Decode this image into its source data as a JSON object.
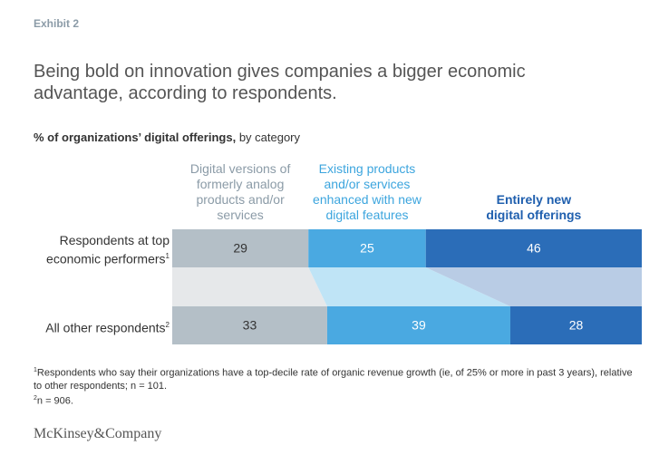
{
  "chart_data": {
    "type": "stacked-bar",
    "exhibit": "Exhibit 2",
    "title": "Being bold on innovation gives companies a bigger economic advantage, according to respondents.",
    "subtitle": [
      "% of organizations’ digital offerings,",
      "by category"
    ],
    "categories": [
      "Respondents at top economic performers",
      "All other respondents"
    ],
    "category_notes": [
      "1",
      "2"
    ],
    "series": [
      {
        "name": "Digital versions of formerly analog products and/or services",
        "color": "#b4bfc7",
        "label_color": "#8b9ba7",
        "link_color": "#e6e8ea",
        "values": [
          29,
          33
        ]
      },
      {
        "name": "Existing products and/or services enhanced with new digital features",
        "color": "#4aa9e1",
        "label_color": "#3ca5de",
        "link_color": "#bfe4f6",
        "values": [
          25,
          39
        ]
      },
      {
        "name": "Entirely new digital offerings",
        "color": "#2b6db8",
        "label_color": "#1f5fae",
        "link_color": "#b9cce5",
        "values": [
          46,
          28
        ]
      }
    ],
    "footnotes": [
      {
        "marker": "1",
        "text": "Respondents who say their organizations have a top-decile rate of organic revenue growth (ie, of 25% or more in past 3 years), relative to other respondents; n = 101."
      },
      {
        "marker": "2",
        "text": "n = 906."
      }
    ],
    "source": "McKinsey&Company"
  }
}
